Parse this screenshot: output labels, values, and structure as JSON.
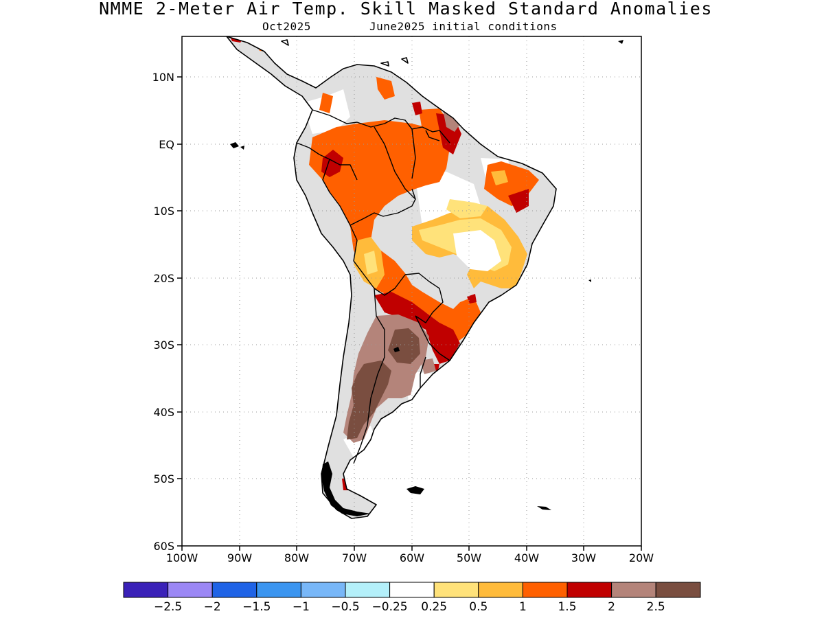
{
  "title": "NMME 2-Meter Air Temp. Skill Masked Standard Anomalies",
  "subtitle_left": "Oct2025",
  "subtitle_right": "June2025 initial conditions",
  "map": {
    "lon_range": [
      -100,
      -20
    ],
    "lat_range": [
      -60,
      15
    ],
    "lat_ticks": [
      {
        "value": 10,
        "label": "10N"
      },
      {
        "value": 0,
        "label": "EQ"
      },
      {
        "value": -10,
        "label": "10S"
      },
      {
        "value": -20,
        "label": "20S"
      },
      {
        "value": -30,
        "label": "30S"
      },
      {
        "value": -40,
        "label": "40S"
      },
      {
        "value": -50,
        "label": "50S"
      },
      {
        "value": -60,
        "label": "60S"
      }
    ],
    "lon_ticks": [
      {
        "value": -100,
        "label": "100W"
      },
      {
        "value": -90,
        "label": "90W"
      },
      {
        "value": -80,
        "label": "80W"
      },
      {
        "value": -70,
        "label": "70W"
      },
      {
        "value": -60,
        "label": "60W"
      },
      {
        "value": -50,
        "label": "50W"
      },
      {
        "value": -40,
        "label": "40W"
      },
      {
        "value": -30,
        "label": "30W"
      },
      {
        "value": -20,
        "label": "20W"
      }
    ],
    "grid": "dotted"
  },
  "colorbar": {
    "bins": [
      {
        "color": "#3a21b8"
      },
      {
        "color": "#9b87f5"
      },
      {
        "color": "#1f63e6"
      },
      {
        "color": "#3b95f0"
      },
      {
        "color": "#78b7f8"
      },
      {
        "color": "#b4f0fa"
      },
      {
        "color": "#ffffff"
      },
      {
        "color": "#ffe27a"
      },
      {
        "color": "#ffbb3b"
      },
      {
        "color": "#ff6000"
      },
      {
        "color": "#c00000"
      },
      {
        "color": "#b4847a"
      },
      {
        "color": "#7a4e40"
      }
    ],
    "labels": [
      "−2.5",
      "−2",
      "−1.5",
      "−1",
      "−0.5",
      "−0.25",
      "0.25",
      "0.5",
      "1",
      "1.5",
      "2",
      "2.5"
    ]
  },
  "colors": {
    "masked_gray": "#e0e0e0",
    "cat_0_25": "#ffe27a",
    "cat_0_5": "#ffbb3b",
    "cat_1": "#ff6000",
    "cat_1_5": "#c00000",
    "cat_2": "#b4847a",
    "cat_2_5": "#7a4e40"
  }
}
